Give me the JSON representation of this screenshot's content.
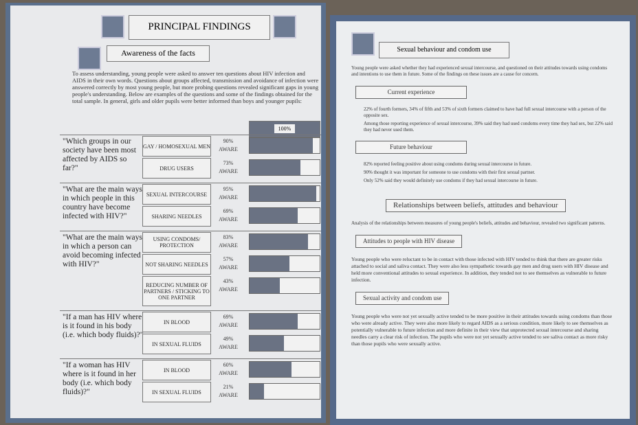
{
  "left": {
    "title": "PRINCIPAL FINDINGS",
    "section": "Awareness of the facts",
    "intro": "To assess understanding, young people were asked to answer ten questions about HIV infection and AIDS in their own words. Questions about groups affected, transmission and avoidance of infection were answered correctly by most young people, but more probing questions revealed significant gaps in young people's understanding. Below are examples of the questions and some of the findings obtained for the total sample. In general, girls and older pupils were better informed than boys and younger pupils:",
    "scale_label": "100%",
    "aware_word": "AWARE",
    "questions": [
      {
        "text": "\"Which groups in our society have been most affected by AIDS so far?\"",
        "answers": [
          {
            "label": "GAY / HOMOSEXUAL MEN",
            "value": 90,
            "value_label": "90%"
          },
          {
            "label": "DRUG USERS",
            "value": 73,
            "value_label": "73%"
          }
        ]
      },
      {
        "text": "\"What are the main ways in which people in this country have become infected with HIV?\"",
        "answers": [
          {
            "label": "SEXUAL INTERCOURSE",
            "value": 95,
            "value_label": "95%"
          },
          {
            "label": "SHARING NEEDLES",
            "value": 69,
            "value_label": "69%"
          }
        ]
      },
      {
        "text": "\"What are the main ways in which a person can avoid becoming infected with HIV?\"",
        "answers": [
          {
            "label": "USING CONDOMS/ PROTECTION",
            "value": 83,
            "value_label": "83%"
          },
          {
            "label": "NOT SHARING NEEDLES",
            "value": 57,
            "value_label": "57%"
          },
          {
            "label": "REDUCING NUMBER OF PARTNERS / STICKING TO ONE PARTNER",
            "value": 43,
            "value_label": "43%"
          }
        ]
      },
      {
        "text": "\"If a man has HIV where is it found in his body (i.e. which body fluids)?\"",
        "answers": [
          {
            "label": "IN BLOOD",
            "value": 69,
            "value_label": "69%"
          },
          {
            "label": "IN SEXUAL FLUIDS",
            "value": 49,
            "value_label": "49%"
          }
        ]
      },
      {
        "text": "\"If a woman has HIV where is it found in her body (i.e. which body fluids)?\"",
        "answers": [
          {
            "label": "IN BLOOD",
            "value": 60,
            "value_label": "60%"
          },
          {
            "label": "IN SEXUAL FLUIDS",
            "value": 21,
            "value_label": "21%"
          }
        ]
      }
    ]
  },
  "right": {
    "title": "Sexual behaviour and condom use",
    "intro": "Young people were asked whether they had experienced sexual intercourse, and questioned on their attitudes towards using condoms and intentions to use them in future. Some of the findings on these issues are a cause for concern.",
    "sections": [
      {
        "heading": "Current experience",
        "bullets": [
          "22% of fourth formers, 34% of fifth and 53% of sixth formers claimed to have had full sexual intercourse with a person of the opposite sex.",
          "Among those reporting experience of sexual intercourse, 39% said they had used condoms every time they had sex, but 22% said they had never used them."
        ]
      },
      {
        "heading": "Future behaviour",
        "bullets": [
          "82% reported feeling positive about using condoms during sexual intercourse in future.",
          "90% thought it was important for someone to use condoms with their first sexual partner.",
          "Only 52% said they would definitely use condoms if they had sexual intercourse in future."
        ]
      }
    ],
    "relationships": {
      "title": "Relationships between beliefs, attitudes and behaviour",
      "intro": "Analysis of the relationships between measures of young people's beliefs, attitudes and behaviour, revealed two significant patterns.",
      "sections": [
        {
          "heading": "Attitudes to people with HIV disease",
          "text": "Young people who were reluctant to be in contact with those infected with HIV tended to think that there are greater risks attached to social and saliva contact. They were also less sympathetic towards gay men and drug users with HIV disease and held more conventional attitudes to sexual experience. In addition, they tended not to see themselves as vulnerable to future infection."
        },
        {
          "heading": "Sexual activity and condom use",
          "text": "Young people who were not yet sexually active tended to be more positive in their attitudes towards using condoms than those who were already active. They were also more likely to regard AIDS as a serious condition, more likely to see themselves as potentially vulnerable to future infection and more definite in their view that unprotected sexual intercourse and sharing needles carry a clear risk of infection. The pupils who were not yet sexually active tended to see saliva contact as more risky than those pupils who were sexually active."
        }
      ]
    }
  }
}
